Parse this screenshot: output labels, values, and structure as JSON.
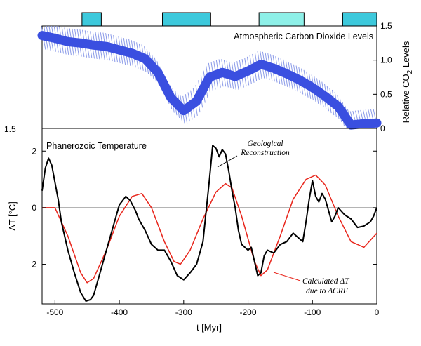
{
  "chart_data": [
    {
      "type": "area",
      "title": "Atmospheric Carbon Dioxide Levels",
      "ylabel": "Relative CO",
      "ylabel_sub": "2",
      "ylabel_tail": " Levels",
      "xlim": [
        -520,
        0
      ],
      "ylim": [
        0,
        1.5
      ],
      "yticks": [
        "0",
        "0.5",
        "1.0",
        "1.5"
      ],
      "left_tick_label": "1.5",
      "colors": {
        "co2": "#3a4fe0",
        "band": "#8a9ae8",
        "cold_period": "#3dc9dc",
        "cold_period_light": "#8ef0e8"
      },
      "cold_periods": [
        {
          "start": -458,
          "end": -428
        },
        {
          "start": -333,
          "end": -258
        },
        {
          "start": -183,
          "end": -113
        },
        {
          "start": -53,
          "end": 0
        }
      ],
      "series": [
        {
          "x": [
            -520,
            -500,
            -480,
            -460,
            -440,
            -420,
            -400,
            -380,
            -360,
            -340,
            -320,
            -300,
            -280,
            -260,
            -240,
            -220,
            -200,
            -180,
            -160,
            -140,
            -120,
            -100,
            -80,
            -60,
            -40,
            -20,
            0
          ],
          "y": [
            1.36,
            1.32,
            1.27,
            1.25,
            1.22,
            1.2,
            1.15,
            1.1,
            1.02,
            0.82,
            0.45,
            0.26,
            0.4,
            0.75,
            0.82,
            0.76,
            0.84,
            0.94,
            0.88,
            0.8,
            0.71,
            0.6,
            0.47,
            0.32,
            0.05,
            0.07,
            0.08
          ],
          "band": 0.2
        }
      ]
    },
    {
      "type": "line",
      "title": "Phanerozoic Temperature",
      "xlabel": "t [Myr]",
      "ylabel": "ΔT [°C]",
      "xlim": [
        -520,
        0
      ],
      "ylim": [
        -3.4,
        2.8
      ],
      "xticks": [
        "-500",
        "-400",
        "-300",
        "-200",
        "-100",
        "0"
      ],
      "yticks": [
        "-2",
        "0",
        "2"
      ],
      "annotations": {
        "geo_line1": "Geological",
        "geo_line2": "Reconstruction",
        "calc_line1": "Calculated ΔT",
        "calc_line2": "due to ΔCRF"
      },
      "series": [
        {
          "color": "#000000",
          "x": [
            -520,
            -515,
            -510,
            -505,
            -500,
            -495,
            -490,
            -480,
            -470,
            -460,
            -452,
            -445,
            -440,
            -430,
            -420,
            -410,
            -400,
            -390,
            -383,
            -375,
            -370,
            -360,
            -350,
            -340,
            -330,
            -320,
            -310,
            -300,
            -290,
            -280,
            -270,
            -265,
            -260,
            -255,
            -250,
            -245,
            -240,
            -235,
            -230,
            -225,
            -220,
            -215,
            -210,
            -200,
            -195,
            -190,
            -185,
            -180,
            -175,
            -170,
            -160,
            -150,
            -140,
            -130,
            -120,
            -115,
            -110,
            -105,
            -100,
            -95,
            -90,
            -85,
            -80,
            -75,
            -70,
            -65,
            -60,
            -50,
            -40,
            -30,
            -20,
            -10,
            -5,
            0
          ],
          "y": [
            0.6,
            1.4,
            1.75,
            1.5,
            0.9,
            0.3,
            -0.5,
            -1.5,
            -2.3,
            -3.0,
            -3.3,
            -3.25,
            -3.1,
            -2.3,
            -1.5,
            -0.7,
            0.1,
            0.4,
            0.25,
            -0.1,
            -0.4,
            -0.8,
            -1.3,
            -1.5,
            -1.5,
            -1.9,
            -2.4,
            -2.55,
            -2.3,
            -2.0,
            -1.2,
            -0.1,
            1.0,
            2.2,
            2.1,
            1.8,
            2.05,
            1.9,
            1.3,
            0.6,
            0.0,
            -0.8,
            -1.3,
            -1.5,
            -1.4,
            -1.9,
            -2.4,
            -2.3,
            -1.7,
            -1.5,
            -1.6,
            -1.3,
            -1.2,
            -0.9,
            -1.1,
            -1.2,
            -0.5,
            0.3,
            0.95,
            0.4,
            0.2,
            0.5,
            0.3,
            -0.1,
            -0.5,
            -0.3,
            0.0,
            -0.25,
            -0.4,
            -0.7,
            -0.65,
            -0.5,
            -0.3,
            0.0
          ]
        },
        {
          "color": "#e8251b",
          "x": [
            -520,
            -500,
            -480,
            -460,
            -450,
            -440,
            -420,
            -400,
            -380,
            -365,
            -350,
            -330,
            -315,
            -305,
            -290,
            -270,
            -250,
            -235,
            -225,
            -210,
            -190,
            -180,
            -170,
            -150,
            -130,
            -110,
            -95,
            -80,
            -60,
            -40,
            -20,
            0
          ],
          "y": [
            0.0,
            0.0,
            -1.0,
            -2.3,
            -2.65,
            -2.5,
            -1.5,
            -0.3,
            0.4,
            0.5,
            0.0,
            -1.2,
            -1.9,
            -2.0,
            -1.5,
            -0.4,
            0.55,
            0.85,
            0.7,
            -0.3,
            -1.9,
            -2.4,
            -2.2,
            -1.0,
            0.3,
            1.0,
            1.15,
            0.8,
            -0.3,
            -1.2,
            -1.4,
            -0.9
          ]
        }
      ]
    }
  ]
}
